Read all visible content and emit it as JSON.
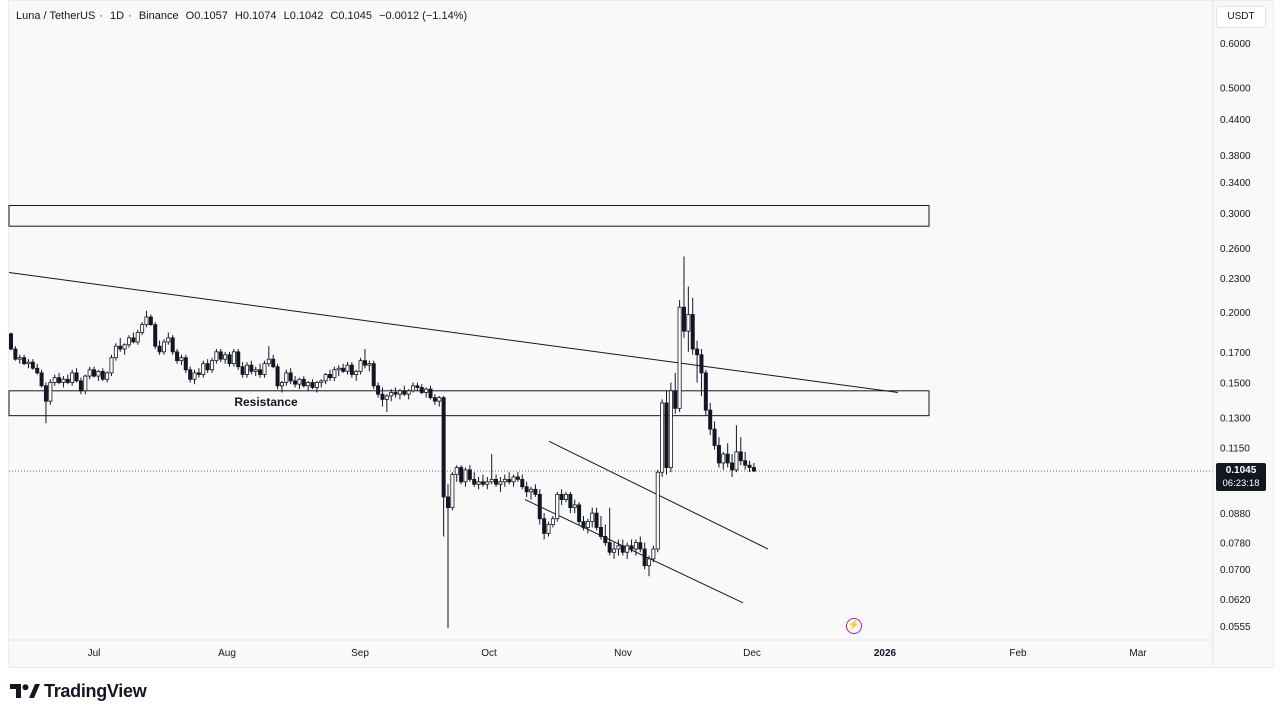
{
  "header": {
    "pair": "Luna / TetherUS",
    "interval": "1D",
    "exchange": "Binance",
    "open": "O0.1057",
    "high": "H0.1074",
    "low": "L0.1042",
    "close": "C0.1045",
    "change": "−0.0012 (−1.14%)"
  },
  "price_axis": {
    "unit_label": "USDT"
  },
  "last_price": {
    "value": "0.1045",
    "countdown": "06:23:18"
  },
  "annotations": {
    "resistance_label": "Resistance"
  },
  "branding": {
    "name": "TradingView"
  },
  "colors": {
    "up": "#ffffff",
    "down": "#131722",
    "text": "#131722",
    "purple": "#9c27b0"
  },
  "chart_data": {
    "type": "candlestick",
    "scale": "log",
    "grid": false,
    "ylim": [
      0.053,
      0.66
    ],
    "y_ticks": [
      "0.6000",
      "0.5000",
      "0.4400",
      "0.3800",
      "0.3400",
      "0.3000",
      "0.2600",
      "0.2300",
      "0.2000",
      "0.1700",
      "0.1500",
      "0.1300",
      "0.1150",
      "0.0880",
      "0.0780",
      "0.0700",
      "0.0620",
      "0.0555"
    ],
    "x_ticks": [
      "Jul",
      "Aug",
      "Sep",
      "Oct",
      "Nov",
      "Dec",
      "2026",
      "Feb",
      "Mar"
    ],
    "candles": [
      [
        0.183,
        0.184,
        0.171,
        0.172
      ],
      [
        0.172,
        0.174,
        0.164,
        0.165
      ],
      [
        0.165,
        0.168,
        0.162,
        0.166
      ],
      [
        0.166,
        0.168,
        0.161,
        0.162
      ],
      [
        0.162,
        0.165,
        0.159,
        0.163
      ],
      [
        0.163,
        0.165,
        0.158,
        0.159
      ],
      [
        0.159,
        0.162,
        0.155,
        0.156
      ],
      [
        0.156,
        0.158,
        0.147,
        0.148
      ],
      [
        0.148,
        0.15,
        0.127,
        0.139
      ],
      [
        0.139,
        0.152,
        0.137,
        0.15
      ],
      [
        0.15,
        0.155,
        0.148,
        0.153
      ],
      [
        0.153,
        0.156,
        0.149,
        0.15
      ],
      [
        0.15,
        0.154,
        0.147,
        0.152
      ],
      [
        0.152,
        0.155,
        0.149,
        0.15
      ],
      [
        0.15,
        0.158,
        0.148,
        0.156
      ],
      [
        0.156,
        0.159,
        0.15,
        0.151
      ],
      [
        0.151,
        0.153,
        0.143,
        0.145
      ],
      [
        0.145,
        0.155,
        0.143,
        0.154
      ],
      [
        0.154,
        0.16,
        0.152,
        0.158
      ],
      [
        0.158,
        0.16,
        0.153,
        0.154
      ],
      [
        0.154,
        0.158,
        0.151,
        0.157
      ],
      [
        0.157,
        0.159,
        0.151,
        0.152
      ],
      [
        0.152,
        0.157,
        0.15,
        0.156
      ],
      [
        0.156,
        0.168,
        0.154,
        0.166
      ],
      [
        0.166,
        0.176,
        0.164,
        0.174
      ],
      [
        0.174,
        0.18,
        0.17,
        0.172
      ],
      [
        0.172,
        0.176,
        0.168,
        0.175
      ],
      [
        0.175,
        0.182,
        0.173,
        0.18
      ],
      [
        0.18,
        0.184,
        0.176,
        0.177
      ],
      [
        0.177,
        0.186,
        0.175,
        0.184
      ],
      [
        0.184,
        0.192,
        0.182,
        0.19
      ],
      [
        0.19,
        0.201,
        0.188,
        0.196
      ],
      [
        0.196,
        0.198,
        0.189,
        0.19
      ],
      [
        0.19,
        0.192,
        0.172,
        0.174
      ],
      [
        0.174,
        0.178,
        0.168,
        0.17
      ],
      [
        0.17,
        0.179,
        0.168,
        0.177
      ],
      [
        0.177,
        0.184,
        0.175,
        0.18
      ],
      [
        0.18,
        0.182,
        0.168,
        0.17
      ],
      [
        0.17,
        0.172,
        0.162,
        0.164
      ],
      [
        0.164,
        0.168,
        0.161,
        0.166
      ],
      [
        0.166,
        0.168,
        0.156,
        0.158
      ],
      [
        0.158,
        0.16,
        0.15,
        0.152
      ],
      [
        0.152,
        0.158,
        0.149,
        0.156
      ],
      [
        0.156,
        0.159,
        0.153,
        0.155
      ],
      [
        0.155,
        0.164,
        0.153,
        0.162
      ],
      [
        0.162,
        0.165,
        0.156,
        0.158
      ],
      [
        0.158,
        0.166,
        0.156,
        0.164
      ],
      [
        0.164,
        0.172,
        0.162,
        0.17
      ],
      [
        0.17,
        0.172,
        0.163,
        0.165
      ],
      [
        0.165,
        0.17,
        0.162,
        0.168
      ],
      [
        0.168,
        0.17,
        0.16,
        0.162
      ],
      [
        0.162,
        0.172,
        0.16,
        0.17
      ],
      [
        0.17,
        0.172,
        0.158,
        0.16
      ],
      [
        0.16,
        0.163,
        0.153,
        0.155
      ],
      [
        0.155,
        0.163,
        0.153,
        0.161
      ],
      [
        0.161,
        0.164,
        0.155,
        0.157
      ],
      [
        0.157,
        0.16,
        0.154,
        0.158
      ],
      [
        0.158,
        0.162,
        0.153,
        0.155
      ],
      [
        0.155,
        0.164,
        0.153,
        0.162
      ],
      [
        0.162,
        0.174,
        0.16,
        0.165
      ],
      [
        0.165,
        0.168,
        0.159,
        0.16
      ],
      [
        0.16,
        0.162,
        0.146,
        0.148
      ],
      [
        0.148,
        0.151,
        0.144,
        0.15
      ],
      [
        0.15,
        0.158,
        0.148,
        0.156
      ],
      [
        0.156,
        0.159,
        0.149,
        0.151
      ],
      [
        0.151,
        0.154,
        0.147,
        0.149
      ],
      [
        0.149,
        0.153,
        0.146,
        0.152
      ],
      [
        0.152,
        0.154,
        0.147,
        0.148
      ],
      [
        0.148,
        0.151,
        0.145,
        0.15
      ],
      [
        0.15,
        0.152,
        0.146,
        0.147
      ],
      [
        0.147,
        0.151,
        0.144,
        0.15
      ],
      [
        0.15,
        0.152,
        0.147,
        0.151
      ],
      [
        0.151,
        0.156,
        0.149,
        0.155
      ],
      [
        0.155,
        0.158,
        0.151,
        0.153
      ],
      [
        0.153,
        0.16,
        0.151,
        0.158
      ],
      [
        0.158,
        0.161,
        0.154,
        0.159
      ],
      [
        0.159,
        0.162,
        0.156,
        0.157
      ],
      [
        0.157,
        0.163,
        0.155,
        0.161
      ],
      [
        0.161,
        0.163,
        0.153,
        0.155
      ],
      [
        0.155,
        0.158,
        0.151,
        0.157
      ],
      [
        0.157,
        0.166,
        0.155,
        0.164
      ],
      [
        0.164,
        0.172,
        0.159,
        0.161
      ],
      [
        0.161,
        0.164,
        0.157,
        0.162
      ],
      [
        0.162,
        0.164,
        0.146,
        0.148
      ],
      [
        0.148,
        0.15,
        0.141,
        0.143
      ],
      [
        0.143,
        0.147,
        0.136,
        0.14
      ],
      [
        0.14,
        0.143,
        0.133,
        0.142
      ],
      [
        0.142,
        0.146,
        0.139,
        0.144
      ],
      [
        0.144,
        0.147,
        0.141,
        0.143
      ],
      [
        0.143,
        0.146,
        0.14,
        0.145
      ],
      [
        0.145,
        0.148,
        0.142,
        0.143
      ],
      [
        0.143,
        0.146,
        0.14,
        0.145
      ],
      [
        0.145,
        0.15,
        0.144,
        0.148
      ],
      [
        0.148,
        0.15,
        0.145,
        0.147
      ],
      [
        0.147,
        0.149,
        0.143,
        0.144
      ],
      [
        0.144,
        0.147,
        0.141,
        0.146
      ],
      [
        0.146,
        0.148,
        0.14,
        0.141
      ],
      [
        0.141,
        0.143,
        0.137,
        0.139
      ],
      [
        0.139,
        0.142,
        0.136,
        0.141
      ],
      [
        0.141,
        0.142,
        0.08,
        0.094
      ],
      [
        0.094,
        0.099,
        0.055,
        0.09
      ],
      [
        0.09,
        0.104,
        0.089,
        0.103
      ],
      [
        0.103,
        0.107,
        0.1,
        0.106
      ],
      [
        0.106,
        0.107,
        0.099,
        0.1
      ],
      [
        0.1,
        0.106,
        0.098,
        0.105
      ],
      [
        0.105,
        0.107,
        0.1,
        0.101
      ],
      [
        0.101,
        0.104,
        0.098,
        0.099
      ],
      [
        0.099,
        0.102,
        0.097,
        0.1
      ],
      [
        0.1,
        0.103,
        0.098,
        0.099
      ],
      [
        0.099,
        0.102,
        0.097,
        0.1
      ],
      [
        0.1,
        0.112,
        0.099,
        0.101
      ],
      [
        0.101,
        0.103,
        0.098,
        0.099
      ],
      [
        0.099,
        0.102,
        0.096,
        0.1
      ],
      [
        0.1,
        0.103,
        0.098,
        0.101
      ],
      [
        0.101,
        0.104,
        0.099,
        0.1
      ],
      [
        0.1,
        0.103,
        0.098,
        0.102
      ],
      [
        0.102,
        0.104,
        0.1,
        0.101
      ],
      [
        0.101,
        0.103,
        0.097,
        0.098
      ],
      [
        0.098,
        0.1,
        0.094,
        0.096
      ],
      [
        0.096,
        0.098,
        0.093,
        0.097
      ],
      [
        0.097,
        0.099,
        0.094,
        0.095
      ],
      [
        0.095,
        0.097,
        0.084,
        0.086
      ],
      [
        0.086,
        0.088,
        0.079,
        0.081
      ],
      [
        0.081,
        0.085,
        0.08,
        0.084
      ],
      [
        0.084,
        0.087,
        0.083,
        0.086
      ],
      [
        0.086,
        0.096,
        0.085,
        0.095
      ],
      [
        0.095,
        0.097,
        0.091,
        0.093
      ],
      [
        0.093,
        0.096,
        0.092,
        0.095
      ],
      [
        0.095,
        0.096,
        0.088,
        0.09
      ],
      [
        0.09,
        0.093,
        0.088,
        0.091
      ],
      [
        0.091,
        0.092,
        0.084,
        0.085
      ],
      [
        0.085,
        0.087,
        0.082,
        0.083
      ],
      [
        0.083,
        0.086,
        0.081,
        0.085
      ],
      [
        0.085,
        0.09,
        0.083,
        0.088
      ],
      [
        0.088,
        0.09,
        0.082,
        0.083
      ],
      [
        0.083,
        0.087,
        0.079,
        0.08
      ],
      [
        0.08,
        0.084,
        0.077,
        0.078
      ],
      [
        0.078,
        0.09,
        0.074,
        0.075
      ],
      [
        0.075,
        0.078,
        0.073,
        0.076
      ],
      [
        0.076,
        0.079,
        0.074,
        0.077
      ],
      [
        0.077,
        0.079,
        0.074,
        0.075
      ],
      [
        0.075,
        0.078,
        0.073,
        0.077
      ],
      [
        0.077,
        0.079,
        0.075,
        0.076
      ],
      [
        0.076,
        0.079,
        0.074,
        0.078
      ],
      [
        0.078,
        0.08,
        0.075,
        0.076
      ],
      [
        0.076,
        0.078,
        0.07,
        0.071
      ],
      [
        0.071,
        0.074,
        0.068,
        0.073
      ],
      [
        0.073,
        0.077,
        0.072,
        0.076
      ],
      [
        0.076,
        0.105,
        0.075,
        0.104
      ],
      [
        0.104,
        0.14,
        0.102,
        0.138
      ],
      [
        0.138,
        0.145,
        0.103,
        0.106
      ],
      [
        0.106,
        0.15,
        0.104,
        0.145
      ],
      [
        0.145,
        0.156,
        0.132,
        0.135
      ],
      [
        0.135,
        0.21,
        0.133,
        0.204
      ],
      [
        0.204,
        0.251,
        0.18,
        0.185
      ],
      [
        0.185,
        0.222,
        0.17,
        0.198
      ],
      [
        0.198,
        0.212,
        0.168,
        0.172
      ],
      [
        0.172,
        0.178,
        0.15,
        0.168
      ],
      [
        0.168,
        0.172,
        0.142,
        0.156
      ],
      [
        0.156,
        0.158,
        0.131,
        0.134
      ],
      [
        0.134,
        0.138,
        0.121,
        0.124
      ],
      [
        0.124,
        0.128,
        0.114,
        0.116
      ],
      [
        0.116,
        0.12,
        0.106,
        0.108
      ],
      [
        0.108,
        0.113,
        0.105,
        0.112
      ],
      [
        0.112,
        0.117,
        0.106,
        0.108
      ],
      [
        0.108,
        0.112,
        0.102,
        0.105
      ],
      [
        0.105,
        0.126,
        0.104,
        0.113
      ],
      [
        0.113,
        0.12,
        0.107,
        0.109
      ],
      [
        0.109,
        0.113,
        0.105,
        0.107
      ],
      [
        0.107,
        0.109,
        0.104,
        0.106
      ],
      [
        0.106,
        0.108,
        0.104,
        0.1045
      ]
    ],
    "drawings": [
      {
        "kind": "zone",
        "price_low": 0.284,
        "price_high": 0.309
      },
      {
        "kind": "zone",
        "label": "Resistance",
        "price_low": 0.131,
        "price_high": 0.145
      },
      {
        "kind": "trendline",
        "from_price": 0.235,
        "to_price": 0.144
      },
      {
        "kind": "channel_line",
        "from_price": 0.118,
        "to_price": 0.076
      },
      {
        "kind": "channel_line",
        "from_price": 0.093,
        "to_price": 0.061
      }
    ],
    "last_price": 0.1045
  }
}
